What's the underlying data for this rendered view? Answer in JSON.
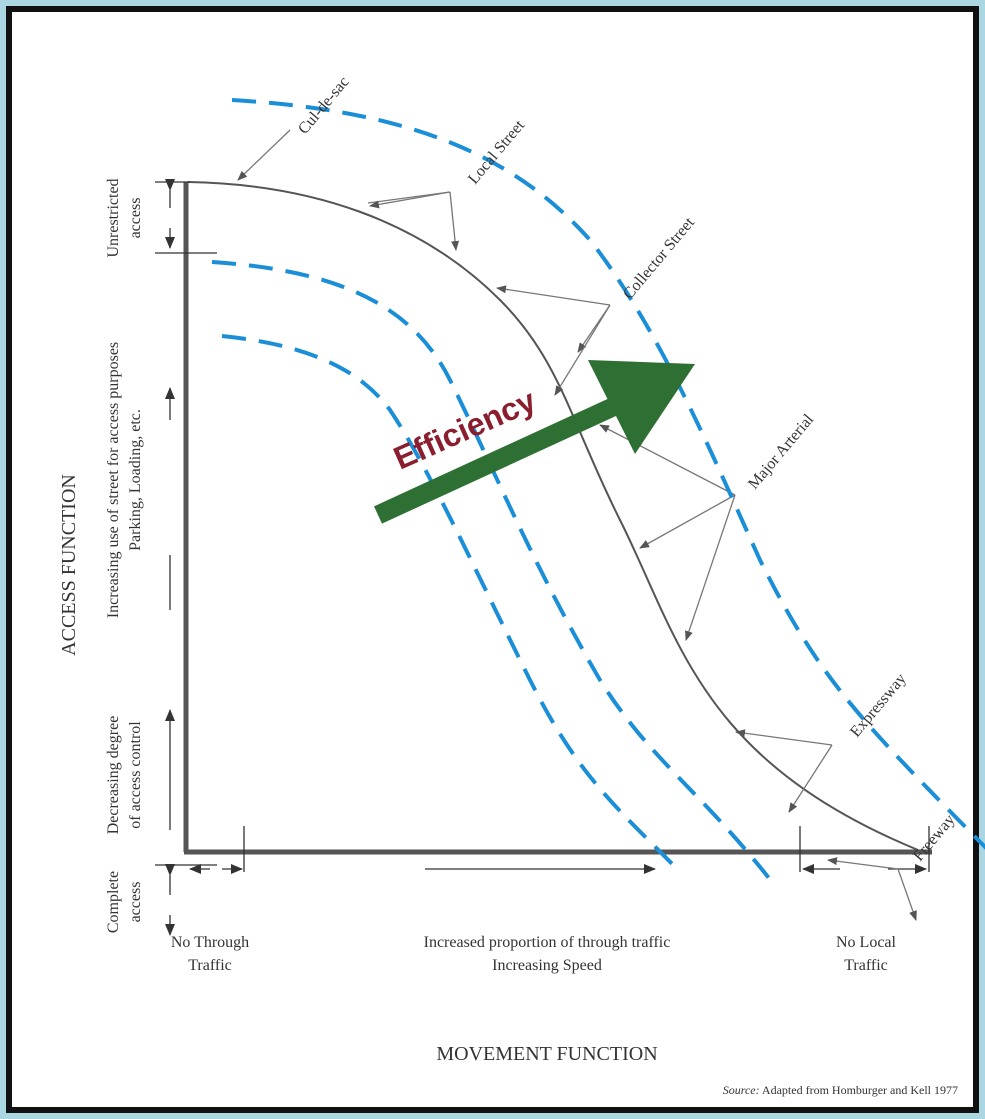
{
  "labels": {
    "cul_de_sac": "Cul-de-sac",
    "local_street": "Local Street",
    "collector_street": "Collector Street",
    "major_arterial": "Major Arterial",
    "expressway": "Expressway",
    "freeway": "Freeway"
  },
  "y_axis": {
    "title": "ACCESS FUNCTION",
    "unrestricted_line1": "Unrestricted",
    "unrestricted_line2": "access",
    "increasing_line1": "Increasing use of street for access purposes",
    "increasing_line2": "Parking, Loading, etc.",
    "decreasing_line1": "Decreasing degree",
    "decreasing_line2": "of access control",
    "complete_line1": "Complete",
    "complete_line2": "access"
  },
  "x_axis": {
    "title": "MOVEMENT FUNCTION",
    "no_through_line1": "No Through",
    "no_through_line2": "Traffic",
    "increased_line1": "Increased proportion of through traffic",
    "increased_line2": "Increasing Speed",
    "no_local_line1": "No Local",
    "no_local_line2": "Traffic"
  },
  "efficiency_label": "Efficiency",
  "source": {
    "prefix": "Source:",
    "text": " Adapted from Homburger and Kell 1977"
  },
  "colors": {
    "background": "#aad7e2",
    "dashed_lines": "#1a8fd8",
    "arrow": "#2e7033",
    "efficiency_text": "#8b1e2e"
  }
}
